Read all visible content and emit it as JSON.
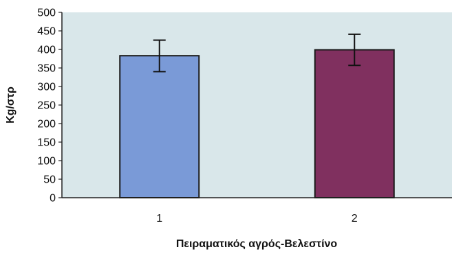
{
  "chart_data": {
    "type": "bar",
    "title": "",
    "xlabel": "Πειραματικός αγρός-Βελεστίνο",
    "ylabel": "Kg/στρ",
    "categories": [
      "1",
      "2"
    ],
    "values": [
      383,
      399
    ],
    "error_low": [
      340,
      357
    ],
    "error_high": [
      425,
      441
    ],
    "ylim": [
      0,
      500
    ],
    "yticks": [
      0,
      50,
      100,
      150,
      200,
      250,
      300,
      350,
      400,
      450,
      500
    ],
    "grid": false,
    "legend": "none",
    "colors": {
      "plot_background": "#d9e7ea",
      "bar_1": "#7a9ad7",
      "bar_2": "#80305f",
      "bar_outline": "#1a1a1a",
      "axis": "#222222"
    }
  }
}
